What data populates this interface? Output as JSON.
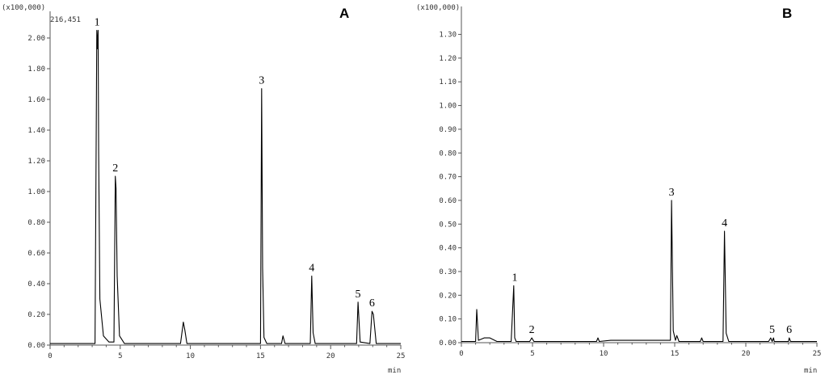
{
  "colors": {
    "trace": "#000000",
    "axis": "#555555",
    "text": "#333333"
  },
  "chart_data": [
    {
      "type": "line",
      "panel_label": "A",
      "y_scale_label": "(x100,000)",
      "max_readout": "216,451",
      "xlabel": "min",
      "xlim": [
        0,
        25
      ],
      "ylim": [
        0,
        2.1
      ],
      "x_ticks": [
        "0",
        "5",
        "10",
        "15",
        "20",
        "25"
      ],
      "y_ticks": [
        "0.00",
        "0.20",
        "0.40",
        "0.60",
        "0.80",
        "1.00",
        "1.20",
        "1.40",
        "1.60",
        "1.80",
        "2.00"
      ],
      "series": [
        {
          "x": [
            0,
            3.2,
            3.33,
            3.38,
            3.42,
            3.46,
            3.55,
            3.8,
            4.2,
            4.55,
            4.65,
            4.7,
            4.78,
            4.95,
            5.3,
            9.3,
            9.5,
            9.6,
            9.75,
            15.0,
            15.08,
            15.15,
            15.25,
            15.45,
            16.5,
            16.6,
            16.75,
            18.55,
            18.65,
            18.75,
            18.9,
            21.85,
            21.95,
            22.1,
            22.8,
            22.95,
            23.05,
            23.25,
            25
          ],
          "y": [
            0.01,
            0.01,
            2.05,
            1.93,
            2.05,
            1.25,
            0.3,
            0.06,
            0.02,
            0.02,
            1.1,
            1.02,
            0.45,
            0.06,
            0.01,
            0.01,
            0.15,
            0.1,
            0.01,
            0.01,
            1.67,
            0.5,
            0.05,
            0.01,
            0.01,
            0.06,
            0.01,
            0.01,
            0.45,
            0.08,
            0.01,
            0.01,
            0.28,
            0.02,
            0.01,
            0.22,
            0.2,
            0.01,
            0.01
          ]
        }
      ],
      "peak_labels": [
        {
          "text": "1",
          "x": 3.35,
          "y": 2.05
        },
        {
          "text": "2",
          "x": 4.65,
          "y": 1.1
        },
        {
          "text": "3",
          "x": 15.08,
          "y": 1.67
        },
        {
          "text": "4",
          "x": 18.65,
          "y": 0.45
        },
        {
          "text": "5",
          "x": 21.95,
          "y": 0.28
        },
        {
          "text": "6",
          "x": 22.95,
          "y": 0.22
        }
      ]
    },
    {
      "type": "line",
      "panel_label": "B",
      "y_scale_label": "(x100,000)",
      "xlabel": "min",
      "xlim": [
        0,
        25
      ],
      "ylim": [
        0,
        1.37
      ],
      "x_ticks": [
        "0",
        "5",
        "10",
        "15",
        "20",
        "25"
      ],
      "y_ticks": [
        "0.00",
        "0.10",
        "0.20",
        "0.30",
        "0.40",
        "0.50",
        "0.60",
        "0.70",
        "0.80",
        "0.90",
        "1.00",
        "1.10",
        "1.20",
        "1.30"
      ],
      "series": [
        {
          "x": [
            0,
            1.0,
            1.08,
            1.2,
            1.6,
            2.0,
            2.5,
            3.5,
            3.68,
            3.75,
            3.85,
            4.8,
            4.95,
            5.1,
            7,
            9.5,
            9.6,
            9.7,
            10.5,
            12,
            13.5,
            14.7,
            14.78,
            14.9,
            15.05,
            15.15,
            15.3,
            16.8,
            16.9,
            17.0,
            18.4,
            18.5,
            18.62,
            18.8,
            21.6,
            21.75,
            21.85,
            21.95,
            22.0,
            23.0,
            23.05,
            23.15,
            25
          ],
          "y": [
            0.005,
            0.005,
            0.14,
            0.01,
            0.02,
            0.02,
            0.005,
            0.005,
            0.24,
            0.02,
            0.005,
            0.005,
            0.02,
            0.005,
            0.005,
            0.005,
            0.02,
            0.005,
            0.01,
            0.01,
            0.01,
            0.01,
            0.6,
            0.05,
            0.01,
            0.03,
            0.005,
            0.005,
            0.02,
            0.005,
            0.005,
            0.47,
            0.04,
            0.005,
            0.005,
            0.02,
            0.005,
            0.02,
            0.005,
            0.005,
            0.02,
            0.005,
            0.005
          ]
        }
      ],
      "peak_labels": [
        {
          "text": "1",
          "x": 3.75,
          "y": 0.24
        },
        {
          "text": "2",
          "x": 4.95,
          "y": 0.02
        },
        {
          "text": "3",
          "x": 14.78,
          "y": 0.6
        },
        {
          "text": "4",
          "x": 18.5,
          "y": 0.47
        },
        {
          "text": "5",
          "x": 21.85,
          "y": 0.02
        },
        {
          "text": "6",
          "x": 23.05,
          "y": 0.02
        }
      ]
    }
  ]
}
